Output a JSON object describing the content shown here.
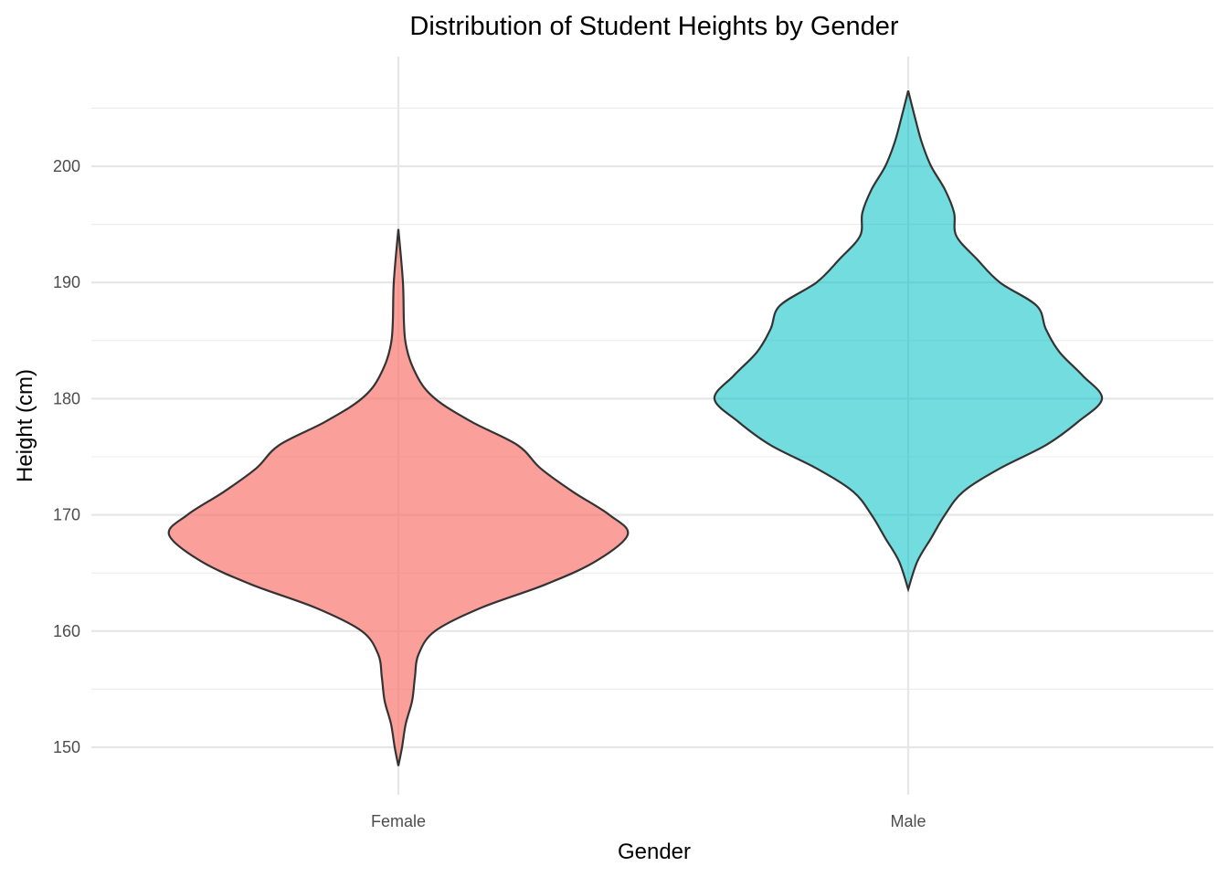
{
  "chart_data": {
    "type": "violin",
    "title": "Distribution of Student Heights by Gender",
    "xlabel": "Gender",
    "ylabel": "Height (cm)",
    "categories": [
      "Female",
      "Male"
    ],
    "ylim": [
      145.5,
      209
    ],
    "yticks": [
      150,
      160,
      170,
      180,
      190,
      200
    ],
    "ytick_labels": [
      "150",
      "160",
      "170",
      "180",
      "190",
      "200"
    ],
    "grid": true,
    "legend": "none",
    "series": [
      {
        "category": "Female",
        "color": "#F8766D",
        "fill_opacity": 0.7,
        "range": [
          148.4,
          194.6
        ],
        "density_profile": [
          [
            148.4,
            0
          ],
          [
            150,
            0.016
          ],
          [
            152,
            0.032
          ],
          [
            154,
            0.06
          ],
          [
            156,
            0.072
          ],
          [
            158,
            0.088
          ],
          [
            160,
            0.16
          ],
          [
            162,
            0.36
          ],
          [
            164,
            0.64
          ],
          [
            166,
            0.86
          ],
          [
            168.3,
            1.0
          ],
          [
            170,
            0.92
          ],
          [
            172,
            0.76
          ],
          [
            174,
            0.62
          ],
          [
            176,
            0.52
          ],
          [
            178,
            0.32
          ],
          [
            180,
            0.16
          ],
          [
            182,
            0.08
          ],
          [
            185,
            0.03
          ],
          [
            190,
            0.02
          ],
          [
            194.6,
            0
          ]
        ]
      },
      {
        "category": "Male",
        "color": "#00BFC4",
        "fill_opacity": 0.55,
        "range": [
          163.6,
          206.5
        ],
        "density_profile": [
          [
            163.6,
            0
          ],
          [
            166,
            0.04
          ],
          [
            168,
            0.1
          ],
          [
            170,
            0.16
          ],
          [
            172,
            0.24
          ],
          [
            174,
            0.4
          ],
          [
            176,
            0.6
          ],
          [
            178,
            0.74
          ],
          [
            180,
            0.845
          ],
          [
            182,
            0.76
          ],
          [
            184,
            0.66
          ],
          [
            186,
            0.6
          ],
          [
            188,
            0.56
          ],
          [
            190,
            0.4
          ],
          [
            192,
            0.3
          ],
          [
            194,
            0.21
          ],
          [
            196,
            0.2
          ],
          [
            198,
            0.16
          ],
          [
            200,
            0.1
          ],
          [
            202,
            0.06
          ],
          [
            204,
            0.032
          ],
          [
            206.5,
            0
          ]
        ]
      }
    ]
  }
}
